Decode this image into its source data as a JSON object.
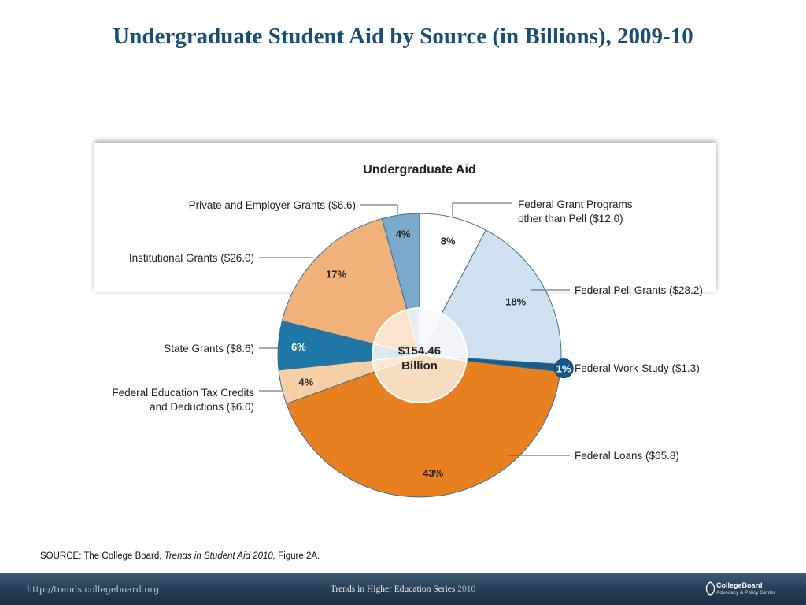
{
  "slide": {
    "title": "Undergraduate Student Aid by Source (in Billions), 2009-10"
  },
  "chart_data": {
    "type": "pie",
    "title": "Undergraduate Aid",
    "total_label": [
      "$154.46",
      "Billion"
    ],
    "unit": "Billions of dollars",
    "slices": [
      {
        "label": "Federal Grant Programs other than Pell ($12.0)",
        "label_lines": [
          "Federal Grant Programs",
          "other than Pell ($12.0)"
        ],
        "value": 12.0,
        "percent_label": "8%",
        "color": "#ffffff"
      },
      {
        "label": "Federal Pell Grants ($28.2)",
        "label_lines": [
          "Federal Pell Grants ($28.2)"
        ],
        "value": 28.2,
        "percent_label": "18%",
        "color": "#cfe0ee"
      },
      {
        "label": "Federal Work-Study ($1.3)",
        "label_lines": [
          "Federal Work-Study ($1.3)"
        ],
        "value": 1.3,
        "percent_label": "1%",
        "color": "#145a8c"
      },
      {
        "label": "Federal Loans ($65.8)",
        "label_lines": [
          "Federal Loans ($65.8)"
        ],
        "value": 65.8,
        "percent_label": "43%",
        "color": "#e8801f"
      },
      {
        "label": "Federal Education Tax Credits and Deductions ($6.0)",
        "label_lines": [
          "Federal Education Tax Credits",
          "and Deductions ($6.0)"
        ],
        "value": 6.0,
        "percent_label": "4%",
        "color": "#f7cfa6"
      },
      {
        "label": "State Grants ($8.6)",
        "label_lines": [
          "State Grants ($8.6)"
        ],
        "value": 8.6,
        "percent_label": "6%",
        "color": "#1f77a8"
      },
      {
        "label": "Institutional Grants ($26.0)",
        "label_lines": [
          "Institutional Grants ($26.0)"
        ],
        "value": 26.0,
        "percent_label": "17%",
        "color": "#f1b27a"
      },
      {
        "label": "Private and Employer Grants ($6.6)",
        "label_lines": [
          "Private and Employer Grants ($6.6)"
        ],
        "value": 6.6,
        "percent_label": "4%",
        "color": "#7ba9cb"
      }
    ]
  },
  "source": {
    "prefix": "SOURCE: The College Board, ",
    "publication": "Trends in Student Aid 2010,",
    "suffix": " Figure 2A."
  },
  "footer": {
    "url": "http://trends.collegeboard.org",
    "series": "Trends in Higher Education Series",
    "year": "2010",
    "logo_name": "CollegeBoard",
    "logo_sub": "Advocacy & Policy Center"
  },
  "colors": {
    "title": "#1b4f72",
    "footer_bg": "#213a52"
  }
}
